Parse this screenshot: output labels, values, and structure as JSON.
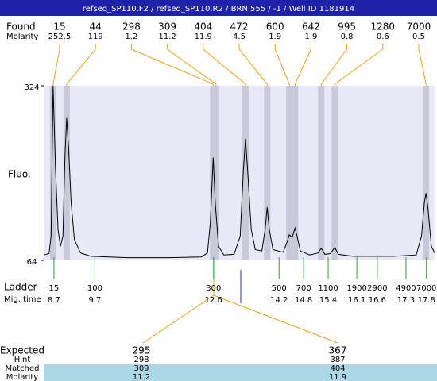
{
  "header": {
    "title": "refseq_SP110.F2 / refseq_SP110.R2 / BRN 555 / -1 / Well ID 1181914"
  },
  "found": {
    "label": "Found",
    "sublabel": "Molarity",
    "peaks": [
      {
        "size": 15,
        "molarity": 252.5,
        "time": 8.68
      },
      {
        "size": 44,
        "molarity": 119,
        "time": 9.01
      },
      {
        "size": 298,
        "molarity": 1.2,
        "time": 12.59
      },
      {
        "size": 309,
        "molarity": 11.2,
        "time": 12.66
      },
      {
        "size": 404,
        "molarity": 11.9,
        "time": 13.38
      },
      {
        "size": 472,
        "molarity": 4.5,
        "time": 13.91
      },
      {
        "size": 600,
        "molarity": 1.9,
        "time": 14.45
      },
      {
        "size": 642,
        "molarity": 1.9,
        "time": 14.59
      },
      {
        "size": 995,
        "molarity": 0.8,
        "time": 15.23
      },
      {
        "size": 1280,
        "molarity": 0.6,
        "time": 15.56
      },
      {
        "size": 7000,
        "molarity": 0.5,
        "time": 17.79
      }
    ]
  },
  "chart_data": {
    "type": "line",
    "y_label": "Fluo.",
    "color": "#000000",
    "xlim": [
      8.45,
      18.0
    ],
    "ylim": [
      64,
      324
    ],
    "yticks": [
      64,
      324
    ],
    "x": [
      8.45,
      8.58,
      8.63,
      8.68,
      8.74,
      8.8,
      8.86,
      8.92,
      8.97,
      9.01,
      9.06,
      9.12,
      9.2,
      9.35,
      9.6,
      10.5,
      11.5,
      12.3,
      12.45,
      12.52,
      12.59,
      12.64,
      12.72,
      12.85,
      13.1,
      13.25,
      13.33,
      13.38,
      13.44,
      13.52,
      13.62,
      13.78,
      13.86,
      13.91,
      13.96,
      14.05,
      14.3,
      14.4,
      14.45,
      14.52,
      14.59,
      14.64,
      14.72,
      14.95,
      15.15,
      15.23,
      15.32,
      15.45,
      15.56,
      15.65,
      16.0,
      17.0,
      17.55,
      17.68,
      17.75,
      17.79,
      17.84,
      17.92,
      18.0
    ],
    "values": [
      72,
      74,
      100,
      324,
      200,
      110,
      85,
      100,
      220,
      276,
      230,
      150,
      95,
      75,
      70,
      68,
      68,
      69,
      75,
      120,
      217,
      150,
      85,
      72,
      73,
      100,
      200,
      245,
      190,
      110,
      80,
      78,
      110,
      143,
      110,
      80,
      76,
      92,
      102,
      98,
      112,
      100,
      78,
      72,
      75,
      82,
      73,
      74,
      83,
      73,
      70,
      70,
      72,
      100,
      150,
      164,
      140,
      85,
      75
    ]
  },
  "ladder": {
    "label": "Ladder",
    "sublabel": "Mig. time",
    "items": [
      {
        "size": 15,
        "time": 8.7
      },
      {
        "size": 100,
        "time": 9.7
      },
      {
        "size": 300,
        "time": 12.6
      },
      {
        "size": 500,
        "time": 14.2
      },
      {
        "size": 700,
        "time": 14.8
      },
      {
        "size": 1100,
        "time": 15.4
      },
      {
        "size": 1900,
        "time": 16.1
      },
      {
        "size": 2900,
        "time": 16.6
      },
      {
        "size": 4900,
        "time": 17.3
      },
      {
        "size": 7000,
        "time": 17.8
      }
    ]
  },
  "expected": {
    "label": "Expected",
    "hint_label": "Hint",
    "matched_label": "Matched",
    "molarity_label": "Molarity",
    "columns": [
      {
        "expected": 295,
        "hint": 298,
        "matched": 309,
        "molarity": 11.2
      },
      {
        "expected": 367,
        "hint": 387,
        "matched": 404,
        "molarity": 11.9
      }
    ]
  }
}
